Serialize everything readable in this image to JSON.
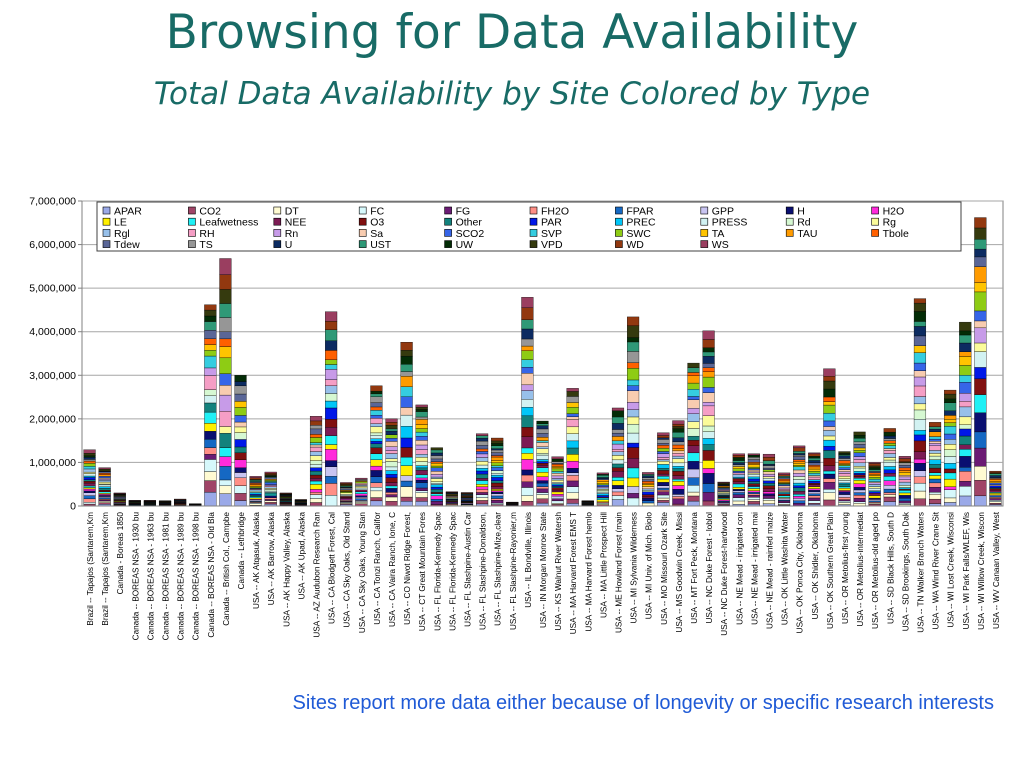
{
  "header": {
    "title": "Browsing for Data Availability",
    "subtitle": "Total Data Availability by Site Colored by Type"
  },
  "caption": "Sites report more data either because of longevity or specific research interests",
  "chart_data": {
    "type": "bar",
    "stacked": true,
    "ylim": [
      0,
      7000000
    ],
    "yticks": [
      "0",
      "1,000,000",
      "2,000,000",
      "3,000,000",
      "4,000,000",
      "5,000,000",
      "6,000,000",
      "7,000,000"
    ],
    "grid": true,
    "legend_position": "top",
    "series": [
      {
        "name": "APAR",
        "color": "#9aa9e8"
      },
      {
        "name": "CO2",
        "color": "#a04467"
      },
      {
        "name": "DT",
        "color": "#fffbd2"
      },
      {
        "name": "FC",
        "color": "#d6f8fb"
      },
      {
        "name": "FG",
        "color": "#6b1b74"
      },
      {
        "name": "FH2O",
        "color": "#ff8f86"
      },
      {
        "name": "FPAR",
        "color": "#1568c3"
      },
      {
        "name": "GPP",
        "color": "#c8c4f1"
      },
      {
        "name": "H",
        "color": "#0a0f70"
      },
      {
        "name": "H2O",
        "color": "#ff2bdb"
      },
      {
        "name": "LE",
        "color": "#fff000"
      },
      {
        "name": "Leafwetness",
        "color": "#1ff0f5"
      },
      {
        "name": "NEE",
        "color": "#7c1c54"
      },
      {
        "name": "O3",
        "color": "#801010"
      },
      {
        "name": "Other",
        "color": "#13827d"
      },
      {
        "name": "PAR",
        "color": "#0018e8"
      },
      {
        "name": "PREC",
        "color": "#00c6f8"
      },
      {
        "name": "PRESS",
        "color": "#d2f2f2"
      },
      {
        "name": "Rd",
        "color": "#d6f8d2"
      },
      {
        "name": "Rg",
        "color": "#fbfb9a"
      },
      {
        "name": "Rgl",
        "color": "#97c0ea"
      },
      {
        "name": "RH",
        "color": "#f59ec5"
      },
      {
        "name": "Rn",
        "color": "#c79be8"
      },
      {
        "name": "Sa",
        "color": "#f8ccb0"
      },
      {
        "name": "SCO2",
        "color": "#3665e8"
      },
      {
        "name": "SVP",
        "color": "#35cde0"
      },
      {
        "name": "SWC",
        "color": "#8ecc14"
      },
      {
        "name": "TA",
        "color": "#ffc400"
      },
      {
        "name": "TAU",
        "color": "#ff9b00"
      },
      {
        "name": "Tbole",
        "color": "#ff6000"
      },
      {
        "name": "Tdew",
        "color": "#5a6697"
      },
      {
        "name": "TS",
        "color": "#969696"
      },
      {
        "name": "U",
        "color": "#0c2b61"
      },
      {
        "name": "UST",
        "color": "#2f9977"
      },
      {
        "name": "UW",
        "color": "#032c06"
      },
      {
        "name": "VPD",
        "color": "#353a0e"
      },
      {
        "name": "WD",
        "color": "#92380f"
      },
      {
        "name": "WS",
        "color": "#9a3e60"
      }
    ],
    "categories": [
      "Brazil -- Tapajos (Santarem,Km",
      "Brazil -- Tapajos (Santarem,Km",
      "Canada - Boreas 1850",
      "Canada -- BOREAS NSA - 1930 bu",
      "Canada -- BOREAS NSA - 1963 bu",
      "Canada -- BOREAS NSA - 1981 bu",
      "Canada -- BOREAS NSA - 1989 bu",
      "Canada -- BOREAS NSA - 1998 bu",
      "Canada -- BOREAS NSA - Old Bla",
      "Canada -- British Col., Campbe",
      "Canada -- Lethbridge",
      "USA -- AK Atqasuk, Alaska",
      "USA -- AK Barrow, Alaska",
      "USA -- AK Happy Valley, Alaska",
      "USA -- AK Upad, Alaska",
      "USA -- AZ Audubon Research Ran",
      "USA -- CA Blodgett Forest, Cal",
      "USA -- CA Sky Oaks, Old Stand",
      "USA -- CA Sky Oaks, Young Stan",
      "USA -- CA Tonzi Ranch, Califor",
      "USA -- CA Vaira Ranch, Ione, C",
      "USA -- CO Niwot Ridge Forest,",
      "USA -- CT Great Mountain Fores",
      "USA -- FL Florida-Kennedy Spac",
      "USA -- FL Florida-Kennedy Spac",
      "USA -- FL Slashpine-Austin Car",
      "USA -- FL Slashpine-Donaldson,",
      "USA -- FL Slashpine-Mize,clear",
      "USA -- FL Slashpine-Rayonier,m",
      "USA -- IL Bondville, Illinois",
      "USA -- IN Morgan Monroe State",
      "USA -- KS Walnut River Watersh",
      "USA -- MA Harvard Forest EMS T",
      "USA -- MA Harvard Forest hemlo",
      "USA -- MA Little Prospect Hill",
      "USA -- ME Howland Forest (main",
      "USA -- MI Sylvania Wilderness",
      "USA -- MI Univ. of Mich. Biolo",
      "USA -- MO Missouri Ozark Site",
      "USA -- MS Goodwin Creek, Missi",
      "USA -- MT Fort Peck, Montana",
      "USA -- NC Duke Forest - loblol",
      "USA -- NC Duke Forest-hardwood",
      "USA -- NE Mead - irrigated con",
      "USA -- NE Mead - irrigated mai",
      "USA -- NE Mead - rainfed maize",
      "USA -- OK Little Washita Water",
      "USA -- OK Ponca City, Oklahoma",
      "USA -- OK Shidler, Oklahoma",
      "USA -- OK Southern Great Plain",
      "USA -- OR Metolius-first young",
      "USA -- OR Metolius-intermediat",
      "USA -- OR Metolius-old aged po",
      "USA -- SD Black Hills, South D",
      "USA -- SD Brookings, South Dak",
      "USA -- TN Walker Branch Waters",
      "USA -- WA Wind River Crane Sit",
      "USA -- WI Lost Creek, Wisconsi",
      "USA -- WI Park Falls/WLEF, Wis",
      "USA -- WI Willow Creek, Wiscon",
      "USA -- WV Canaan Valley, West"
    ],
    "totals": [
      1290000,
      880000,
      300000,
      130000,
      130000,
      120000,
      160000,
      50000,
      4620000,
      5680000,
      3000000,
      680000,
      780000,
      300000,
      150000,
      2060000,
      4460000,
      540000,
      640000,
      2760000,
      2000000,
      3760000,
      2320000,
      1340000,
      330000,
      310000,
      1660000,
      1560000,
      90000,
      4790000,
      1950000,
      1130000,
      2700000,
      120000,
      760000,
      2250000,
      4340000,
      770000,
      1680000,
      1960000,
      3280000,
      4020000,
      550000,
      1200000,
      1200000,
      1190000,
      760000,
      1380000,
      1220000,
      3150000,
      1250000,
      1700000,
      1000000,
      1780000,
      1140000,
      4760000,
      1920000,
      2660000,
      4220000,
      6620000,
      800000
    ]
  }
}
